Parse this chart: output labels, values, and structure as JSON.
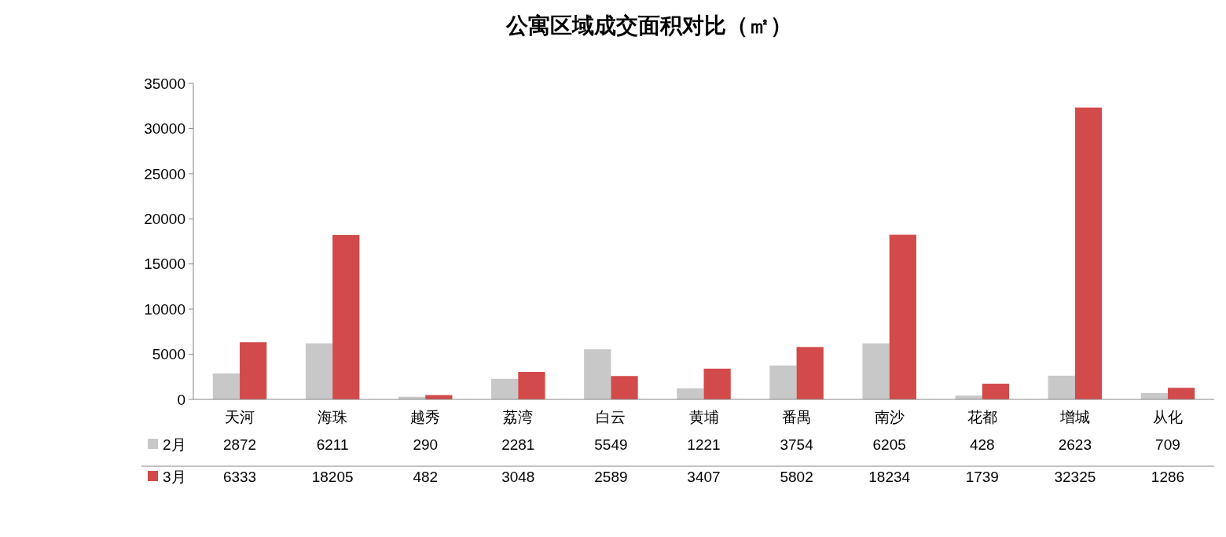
{
  "chart_data": {
    "type": "bar",
    "title": "公寓区域成交面积对比（㎡）",
    "categories": [
      "天河",
      "海珠",
      "越秀",
      "荔湾",
      "白云",
      "黄埔",
      "番禺",
      "南沙",
      "花都",
      "增城",
      "从化"
    ],
    "series": [
      {
        "name": "2月",
        "color": "#c8c8c8",
        "values": [
          2872,
          6211,
          290,
          2281,
          5549,
          1221,
          3754,
          6205,
          428,
          2623,
          709
        ]
      },
      {
        "name": "3月",
        "color": "#d24a4a",
        "values": [
          6333,
          18205,
          482,
          3048,
          2589,
          3407,
          5802,
          18234,
          1739,
          32325,
          1286
        ]
      }
    ],
    "ylim": [
      0,
      35000
    ],
    "yticks": [
      0,
      5000,
      10000,
      15000,
      20000,
      25000,
      30000,
      35000
    ],
    "grid": false,
    "legend": "bottom",
    "data_labels": true
  }
}
